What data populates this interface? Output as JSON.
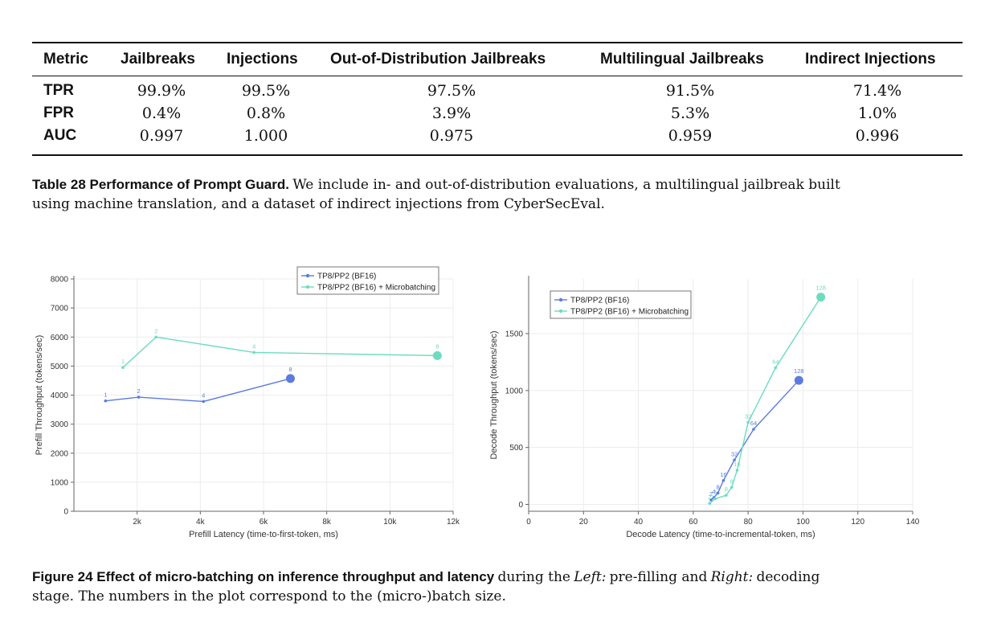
{
  "table": {
    "headers": [
      "Metric",
      "Jailbreaks",
      "Injections",
      "Out-of-Distribution Jailbreaks",
      "Multilingual Jailbreaks",
      "Indirect Injections"
    ],
    "rows": [
      {
        "metric": "TPR",
        "values": [
          "99.9%",
          "99.5%",
          "97.5%",
          "91.5%",
          "71.4%"
        ]
      },
      {
        "metric": "FPR",
        "values": [
          "0.4%",
          "0.8%",
          "3.9%",
          "5.3%",
          "1.0%"
        ]
      },
      {
        "metric": "AUC",
        "values": [
          "0.997",
          "1.000",
          "0.975",
          "0.959",
          "0.996"
        ]
      }
    ],
    "caption_lead": "Table 28  Performance of Prompt Guard.",
    "caption_body_line1": "We include in- and out-of-distribution evaluations, a multilingual jailbreak built",
    "caption_body_line2": "using machine translation, and a dataset of indirect injections from CyberSecEval."
  },
  "figure": {
    "caption_lead": "Figure 24  Effect of micro-batching on inference throughput and latency",
    "caption_part1": "during the",
    "caption_left": "Left:",
    "caption_part2": "pre-filling and",
    "caption_right": "Right:",
    "caption_part3": "decoding",
    "caption_line2": "stage. The numbers in the plot correspond to the (micro-)batch size."
  },
  "colors": {
    "blue": "#5b7be0",
    "teal": "#6cdcc0",
    "grid": "#ececec",
    "axis": "#666666"
  },
  "chart_data": [
    {
      "type": "line",
      "xlabel": "Prefill Latency (time-to-first-token, ms)",
      "ylabel": "Prefill Throughput (tokens/sec)",
      "xlim": [
        0,
        12000
      ],
      "ylim": [
        0,
        8000
      ],
      "xticks": [
        2000,
        4000,
        6000,
        8000,
        10000,
        12000
      ],
      "xtick_labels": [
        "2k",
        "4k",
        "6k",
        "8k",
        "10k",
        "12k"
      ],
      "yticks": [
        0,
        1000,
        2000,
        3000,
        4000,
        5000,
        6000,
        7000,
        8000
      ],
      "legend_position": "top-right",
      "series": [
        {
          "name": "TP8/PP2 (BF16)",
          "color": "#5b7be0",
          "x": [
            1000,
            2050,
            4100,
            6850
          ],
          "y": [
            3800,
            3930,
            3780,
            4570
          ],
          "labels": [
            "1",
            "2",
            "4",
            "8"
          ]
        },
        {
          "name": "TP8/PP2 (BF16) + Microbatching",
          "color": "#6cdcc0",
          "x": [
            1550,
            2600,
            5700,
            11500
          ],
          "y": [
            4950,
            6000,
            5470,
            5360
          ],
          "labels": [
            "1",
            "2",
            "4",
            "8"
          ]
        }
      ]
    },
    {
      "type": "line",
      "xlabel": "Decode Latency (time-to-incremental-token, ms)",
      "ylabel": "Decode Throughput (tokens/sec)",
      "xlim": [
        0,
        140
      ],
      "ylim": [
        -60,
        1980
      ],
      "xticks": [
        0,
        20,
        40,
        60,
        80,
        100,
        120,
        140
      ],
      "xtick_labels": [
        "0",
        "20",
        "40",
        "60",
        "80",
        "100",
        "120",
        "140"
      ],
      "yticks": [
        0,
        500,
        1000,
        1500
      ],
      "legend_position": "top-left",
      "series": [
        {
          "name": "TP8/PP2 (BF16)",
          "color": "#5b7be0",
          "x": [
            66.5,
            67.5,
            69,
            71,
            75,
            82,
            98.5
          ],
          "y": [
            40,
            60,
            100,
            210,
            390,
            660,
            1090
          ],
          "labels": [
            "2",
            "4",
            "8",
            "16",
            "32",
            "64",
            "128"
          ]
        },
        {
          "name": "TP8/PP2 (BF16) + Microbatching",
          "color": "#6cdcc0",
          "x": [
            66,
            68,
            72,
            74,
            76,
            80,
            90,
            106.5
          ],
          "y": [
            10,
            50,
            80,
            150,
            300,
            720,
            1200,
            1820
          ],
          "labels": [
            "2",
            "4",
            "8",
            "8",
            "16",
            "32",
            "64",
            "128"
          ]
        }
      ]
    }
  ]
}
